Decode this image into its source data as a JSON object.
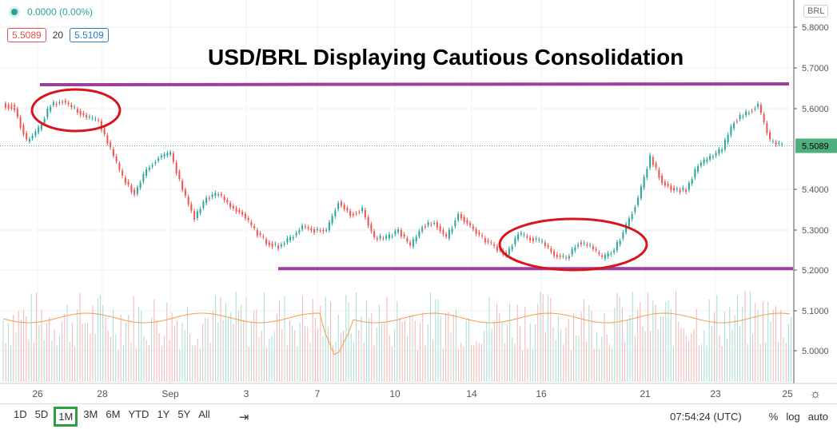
{
  "legend": {
    "change": "0.0000 (0.00%)",
    "bid": "5.5089",
    "ma_period": "20",
    "ask": "5.5109"
  },
  "title": "USD/BRL Displaying Cautious Consolidation",
  "price_axis": {
    "currency": "BRL",
    "ticks": [
      "5.8000",
      "5.7000",
      "5.6000",
      "5.4000",
      "5.3000",
      "5.2000",
      "5.1000",
      "5.0000"
    ],
    "last_price": "5.5089",
    "last_price_color": "#4caf7d"
  },
  "time_axis": {
    "ticks": [
      "26",
      "28",
      "Sep",
      "3",
      "7",
      "10",
      "14",
      "16",
      "21",
      "23",
      "25"
    ]
  },
  "chart_data": {
    "type": "candlestick",
    "ylim": [
      4.95,
      5.82
    ],
    "closes": [
      5.61,
      5.6,
      5.52,
      5.55,
      5.61,
      5.62,
      5.6,
      5.58,
      5.57,
      5.5,
      5.43,
      5.39,
      5.45,
      5.48,
      5.49,
      5.4,
      5.33,
      5.38,
      5.39,
      5.36,
      5.34,
      5.3,
      5.27,
      5.26,
      5.28,
      5.31,
      5.3,
      5.3,
      5.37,
      5.34,
      5.35,
      5.28,
      5.28,
      5.3,
      5.26,
      5.31,
      5.32,
      5.28,
      5.34,
      5.31,
      5.28,
      5.26,
      5.24,
      5.29,
      5.28,
      5.27,
      5.24,
      5.23,
      5.27,
      5.26,
      5.23,
      5.25,
      5.31,
      5.38,
      5.48,
      5.42,
      5.4,
      5.4,
      5.46,
      5.48,
      5.5,
      5.57,
      5.59,
      5.61,
      5.52,
      5.51
    ],
    "resistance": 5.66,
    "support": 5.205,
    "colors": {
      "up": "#26a69a",
      "down": "#ef5350",
      "lines": "#9c3fa0",
      "ellipses": "#d9141b",
      "ma": "#f39c50"
    }
  },
  "toolbar": {
    "ranges": [
      "1D",
      "5D",
      "1M",
      "3M",
      "6M",
      "YTD",
      "1Y",
      "5Y",
      "All"
    ],
    "selected": "1M",
    "time": "07:54:24 (UTC)",
    "percent": "%",
    "log": "log",
    "auto": "auto"
  }
}
